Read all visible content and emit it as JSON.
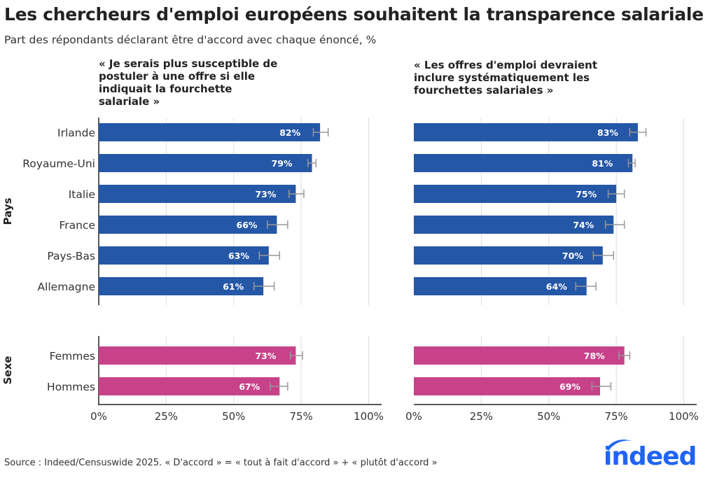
{
  "title": "Les chercheurs d'emploi européens souhaitent la transparence salariale",
  "subtitle": "Part des répondants déclarant être d'accord avec chaque énoncé, %",
  "source": "Source : Indeed/Censuswide 2025. « D'accord » = « tout à fait d'accord » + « plutôt d'accord »",
  "logo_text": "indeed",
  "colors": {
    "pays": "#2557a7",
    "sexe": "#c8428a",
    "error_bar": "#999999",
    "grid": "#dddddd",
    "axis": "#222222"
  },
  "chart_data": {
    "type": "bar",
    "orientation": "horizontal",
    "xlim": [
      0,
      100
    ],
    "x_ticks": [
      "0%",
      "25%",
      "50%",
      "75%",
      "100%"
    ],
    "grid": true,
    "groups": [
      {
        "name": "Pays",
        "categories": [
          "Irlande",
          "Royaume-Uni",
          "Italie",
          "France",
          "Pays-Bas",
          "Allemagne"
        ]
      },
      {
        "name": "Sexe",
        "categories": [
          "Femmes",
          "Hommes"
        ]
      }
    ],
    "panels": [
      {
        "title": "« Je serais plus susceptible de postuler à une offre si elle indiquait la fourchette salariale »",
        "series": [
          {
            "group": "Pays",
            "values": [
              82,
              79,
              73,
              66,
              63,
              61
            ],
            "labels": [
              "82%",
              "79%",
              "73%",
              "66%",
              "63%",
              "61%"
            ],
            "error_low": [
              79.5,
              77.5,
              70.5,
              62.5,
              59.5,
              57.5
            ],
            "error_high": [
              85,
              80.5,
              76,
              70,
              67,
              65
            ]
          },
          {
            "group": "Sexe",
            "values": [
              73,
              67
            ],
            "labels": [
              "73%",
              "67%"
            ],
            "error_low": [
              71,
              63.5
            ],
            "error_high": [
              75.5,
              70
            ]
          }
        ]
      },
      {
        "title": "« Les offres d'emploi devraient inclure systématiquement les fourchettes salariales »",
        "series": [
          {
            "group": "Pays",
            "values": [
              83,
              81,
              75,
              74,
              70,
              64
            ],
            "labels": [
              "83%",
              "81%",
              "75%",
              "74%",
              "70%",
              "64%"
            ],
            "error_low": [
              80,
              79.5,
              72,
              71,
              66.5,
              60
            ],
            "error_high": [
              86,
              82,
              78,
              78,
              74,
              67.5
            ]
          },
          {
            "group": "Sexe",
            "values": [
              78,
              69
            ],
            "labels": [
              "78%",
              "69%"
            ],
            "error_low": [
              76,
              66
            ],
            "error_high": [
              80,
              73
            ]
          }
        ]
      }
    ]
  }
}
